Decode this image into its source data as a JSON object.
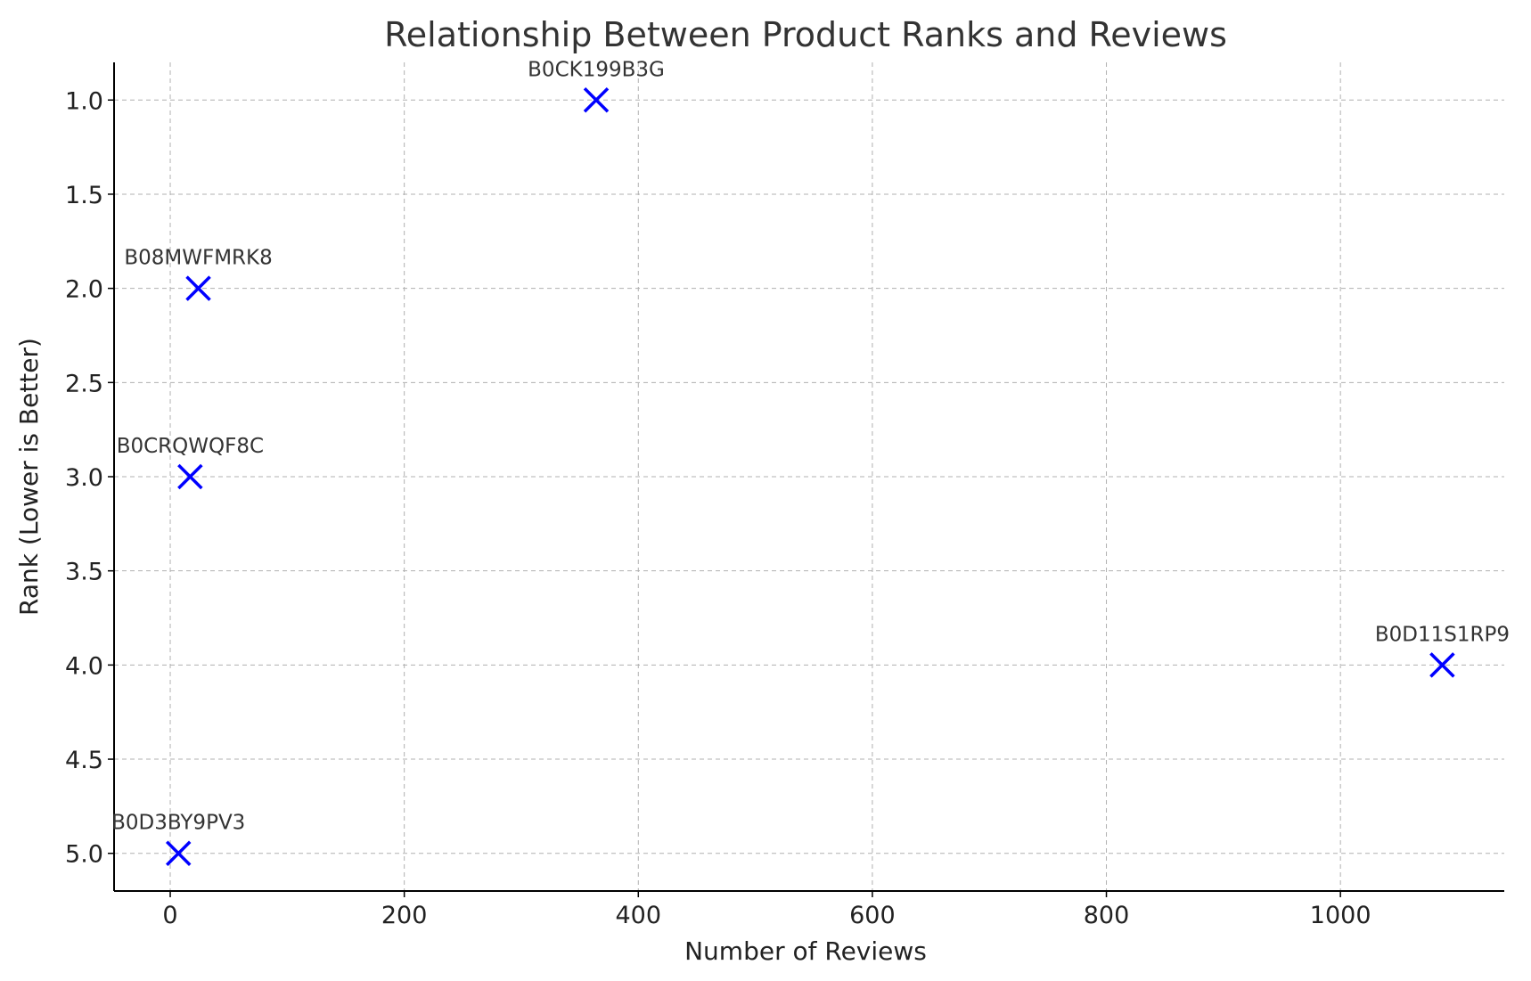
{
  "chart_data": {
    "type": "scatter",
    "title": "Relationship Between Product Ranks and Reviews",
    "xlabel": "Number of Reviews",
    "ylabel": "Rank (Lower is Better)",
    "xlim": [
      -48,
      1140
    ],
    "ylim": [
      5.2,
      0.8
    ],
    "y_inverted": true,
    "grid": true,
    "marker": "x",
    "marker_color": "#0000ff",
    "x_ticks": [
      0,
      200,
      400,
      600,
      800,
      1000
    ],
    "x_tick_labels": [
      "0",
      "200",
      "400",
      "600",
      "800",
      "1000"
    ],
    "y_ticks": [
      1.0,
      1.5,
      2.0,
      2.5,
      3.0,
      3.5,
      4.0,
      4.5,
      5.0
    ],
    "y_tick_labels": [
      "1.0",
      "1.5",
      "2.0",
      "2.5",
      "3.0",
      "3.5",
      "4.0",
      "4.5",
      "5.0"
    ],
    "points": [
      {
        "label": "B0CK199B3G",
        "x": 364,
        "y": 1
      },
      {
        "label": "B08MWFMRK8",
        "x": 24,
        "y": 2
      },
      {
        "label": "B0CRQWQF8C",
        "x": 17,
        "y": 3
      },
      {
        "label": "B0D11S1RP9",
        "x": 1087,
        "y": 4
      },
      {
        "label": "B0D3BY9PV3",
        "x": 7,
        "y": 5
      }
    ]
  }
}
